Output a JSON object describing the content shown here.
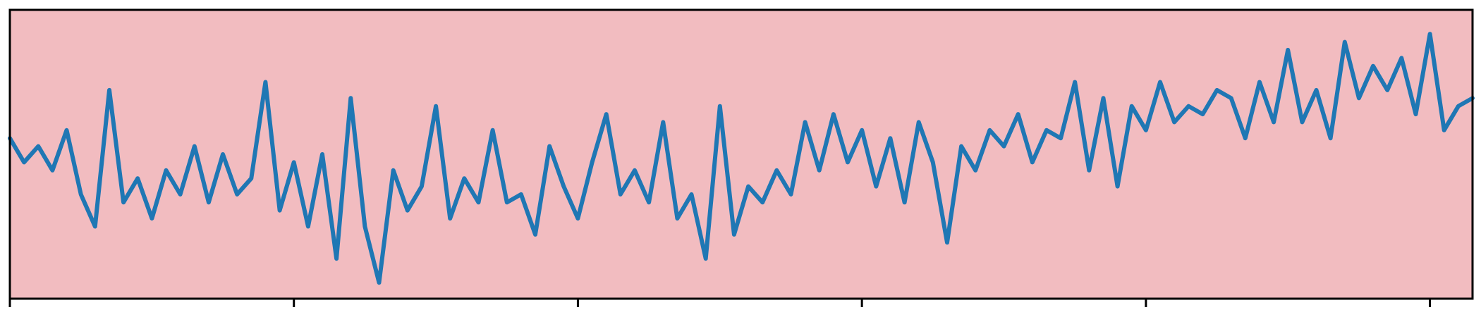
{
  "chart_data": {
    "type": "line",
    "title": "",
    "xlabel": "",
    "ylabel": "",
    "xlim": [
      0,
      1030
    ],
    "ylim": [
      -1.8,
      1.8
    ],
    "xticks": [
      0,
      200,
      400,
      600,
      800,
      1000
    ],
    "xtick_labels": [
      "",
      "",
      "",
      "",
      "",
      ""
    ],
    "grid": false,
    "legend": "none",
    "colors": {
      "background": "#f2bcc0",
      "line": "#1f77b4",
      "frame": "#000000"
    },
    "series": [
      {
        "x": [
          0,
          10,
          20,
          30,
          40,
          50,
          60,
          70,
          80,
          90,
          100,
          110,
          120,
          130,
          140,
          150,
          160,
          170,
          180,
          190,
          200,
          210,
          220,
          230,
          240,
          250,
          260,
          270,
          280,
          290,
          300,
          310,
          320,
          330,
          340,
          350,
          360,
          370,
          380,
          390,
          400,
          410,
          420,
          430,
          440,
          450,
          460,
          470,
          480,
          490,
          500,
          510,
          520,
          530,
          540,
          550,
          560,
          570,
          580,
          590,
          600,
          610,
          620,
          630,
          640,
          650,
          660,
          670,
          680,
          690,
          700,
          710,
          720,
          730,
          740,
          750,
          760,
          770,
          780,
          790,
          800,
          810,
          820,
          830,
          840,
          850,
          860,
          870,
          880,
          890,
          900,
          910,
          920,
          930,
          940,
          950,
          960,
          970,
          980,
          990,
          1000,
          1010,
          1020,
          1030
        ],
        "y": [
          0.2,
          -0.1,
          0.1,
          -0.2,
          0.3,
          -0.5,
          -0.9,
          0.8,
          -0.6,
          -0.3,
          -0.8,
          -0.2,
          -0.5,
          0.1,
          -0.6,
          0.0,
          -0.5,
          -0.3,
          0.9,
          -0.7,
          -0.1,
          -0.9,
          0.0,
          -1.3,
          0.7,
          -0.9,
          -1.6,
          -0.2,
          -0.7,
          -0.4,
          0.6,
          -0.8,
          -0.3,
          -0.6,
          0.3,
          -0.6,
          -0.5,
          -1.0,
          0.1,
          -0.4,
          -0.8,
          -0.1,
          0.5,
          -0.5,
          -0.2,
          -0.6,
          0.4,
          -0.8,
          -0.5,
          -1.3,
          0.6,
          -1.0,
          -0.4,
          -0.6,
          -0.2,
          -0.5,
          0.4,
          -0.2,
          0.5,
          -0.1,
          0.3,
          -0.4,
          0.2,
          -0.6,
          0.4,
          -0.1,
          -1.1,
          0.1,
          -0.2,
          0.3,
          0.1,
          0.5,
          -0.1,
          0.3,
          0.2,
          0.9,
          -0.2,
          0.7,
          -0.4,
          0.6,
          0.3,
          0.9,
          0.4,
          0.6,
          0.5,
          0.8,
          0.7,
          0.2,
          0.9,
          0.4,
          1.3,
          0.4,
          0.8,
          0.2,
          1.4,
          0.7,
          1.1,
          0.8,
          1.2,
          0.5,
          1.5,
          0.3,
          0.6,
          0.7
        ]
      }
    ]
  }
}
